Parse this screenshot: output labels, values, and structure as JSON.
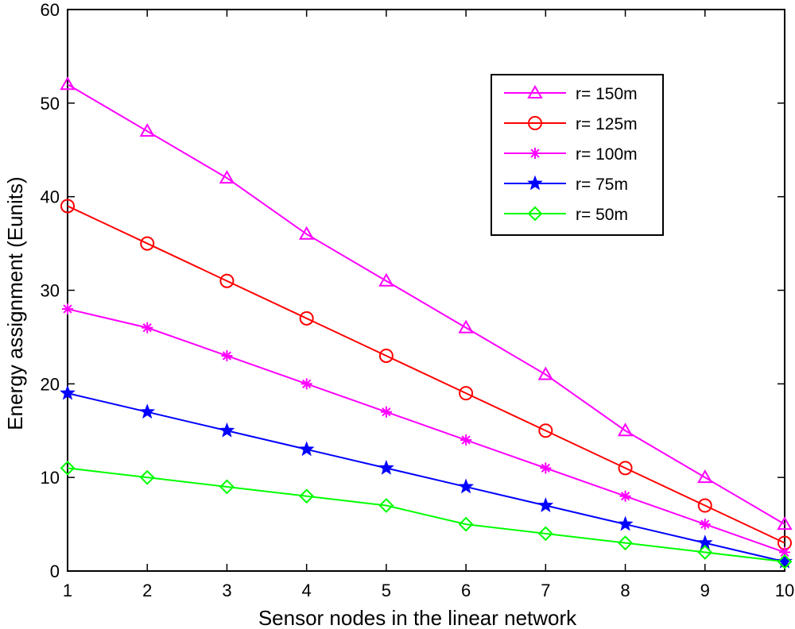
{
  "chart_data": {
    "type": "line",
    "title": "",
    "xlabel": "Sensor nodes in the linear network",
    "ylabel": "Energy assignment (Eunits)",
    "xlim": [
      1,
      10
    ],
    "ylim": [
      0,
      60
    ],
    "x_ticks": [
      "1",
      "2",
      "3",
      "4",
      "5",
      "6",
      "7",
      "8",
      "9",
      "10"
    ],
    "y_ticks": [
      "0",
      "10",
      "20",
      "30",
      "40",
      "50",
      "60"
    ],
    "grid": false,
    "legend_position": "top-right",
    "x": [
      1,
      2,
      3,
      4,
      5,
      6,
      7,
      8,
      9,
      10
    ],
    "series": [
      {
        "name": "r= 150m",
        "color": "#ff00ff",
        "marker": "triangle",
        "values": [
          52,
          47,
          42,
          36,
          31,
          26,
          21,
          15,
          10,
          5
        ]
      },
      {
        "name": "r= 125m",
        "color": "#ff0000",
        "marker": "circle",
        "values": [
          39,
          35,
          31,
          27,
          23,
          19,
          15,
          11,
          7,
          3
        ]
      },
      {
        "name": "r= 100m",
        "color": "#ff00ff",
        "marker": "asterisk",
        "values": [
          28,
          26,
          23,
          20,
          17,
          14,
          11,
          8,
          5,
          2
        ]
      },
      {
        "name": "r= 75m",
        "color": "#0000ff",
        "marker": "star",
        "values": [
          19,
          17,
          15,
          13,
          11,
          9,
          7,
          5,
          3,
          1
        ]
      },
      {
        "name": "r= 50m",
        "color": "#00ff00",
        "marker": "diamond",
        "values": [
          11,
          10,
          9,
          8,
          7,
          5,
          4,
          3,
          2,
          1
        ]
      }
    ]
  }
}
